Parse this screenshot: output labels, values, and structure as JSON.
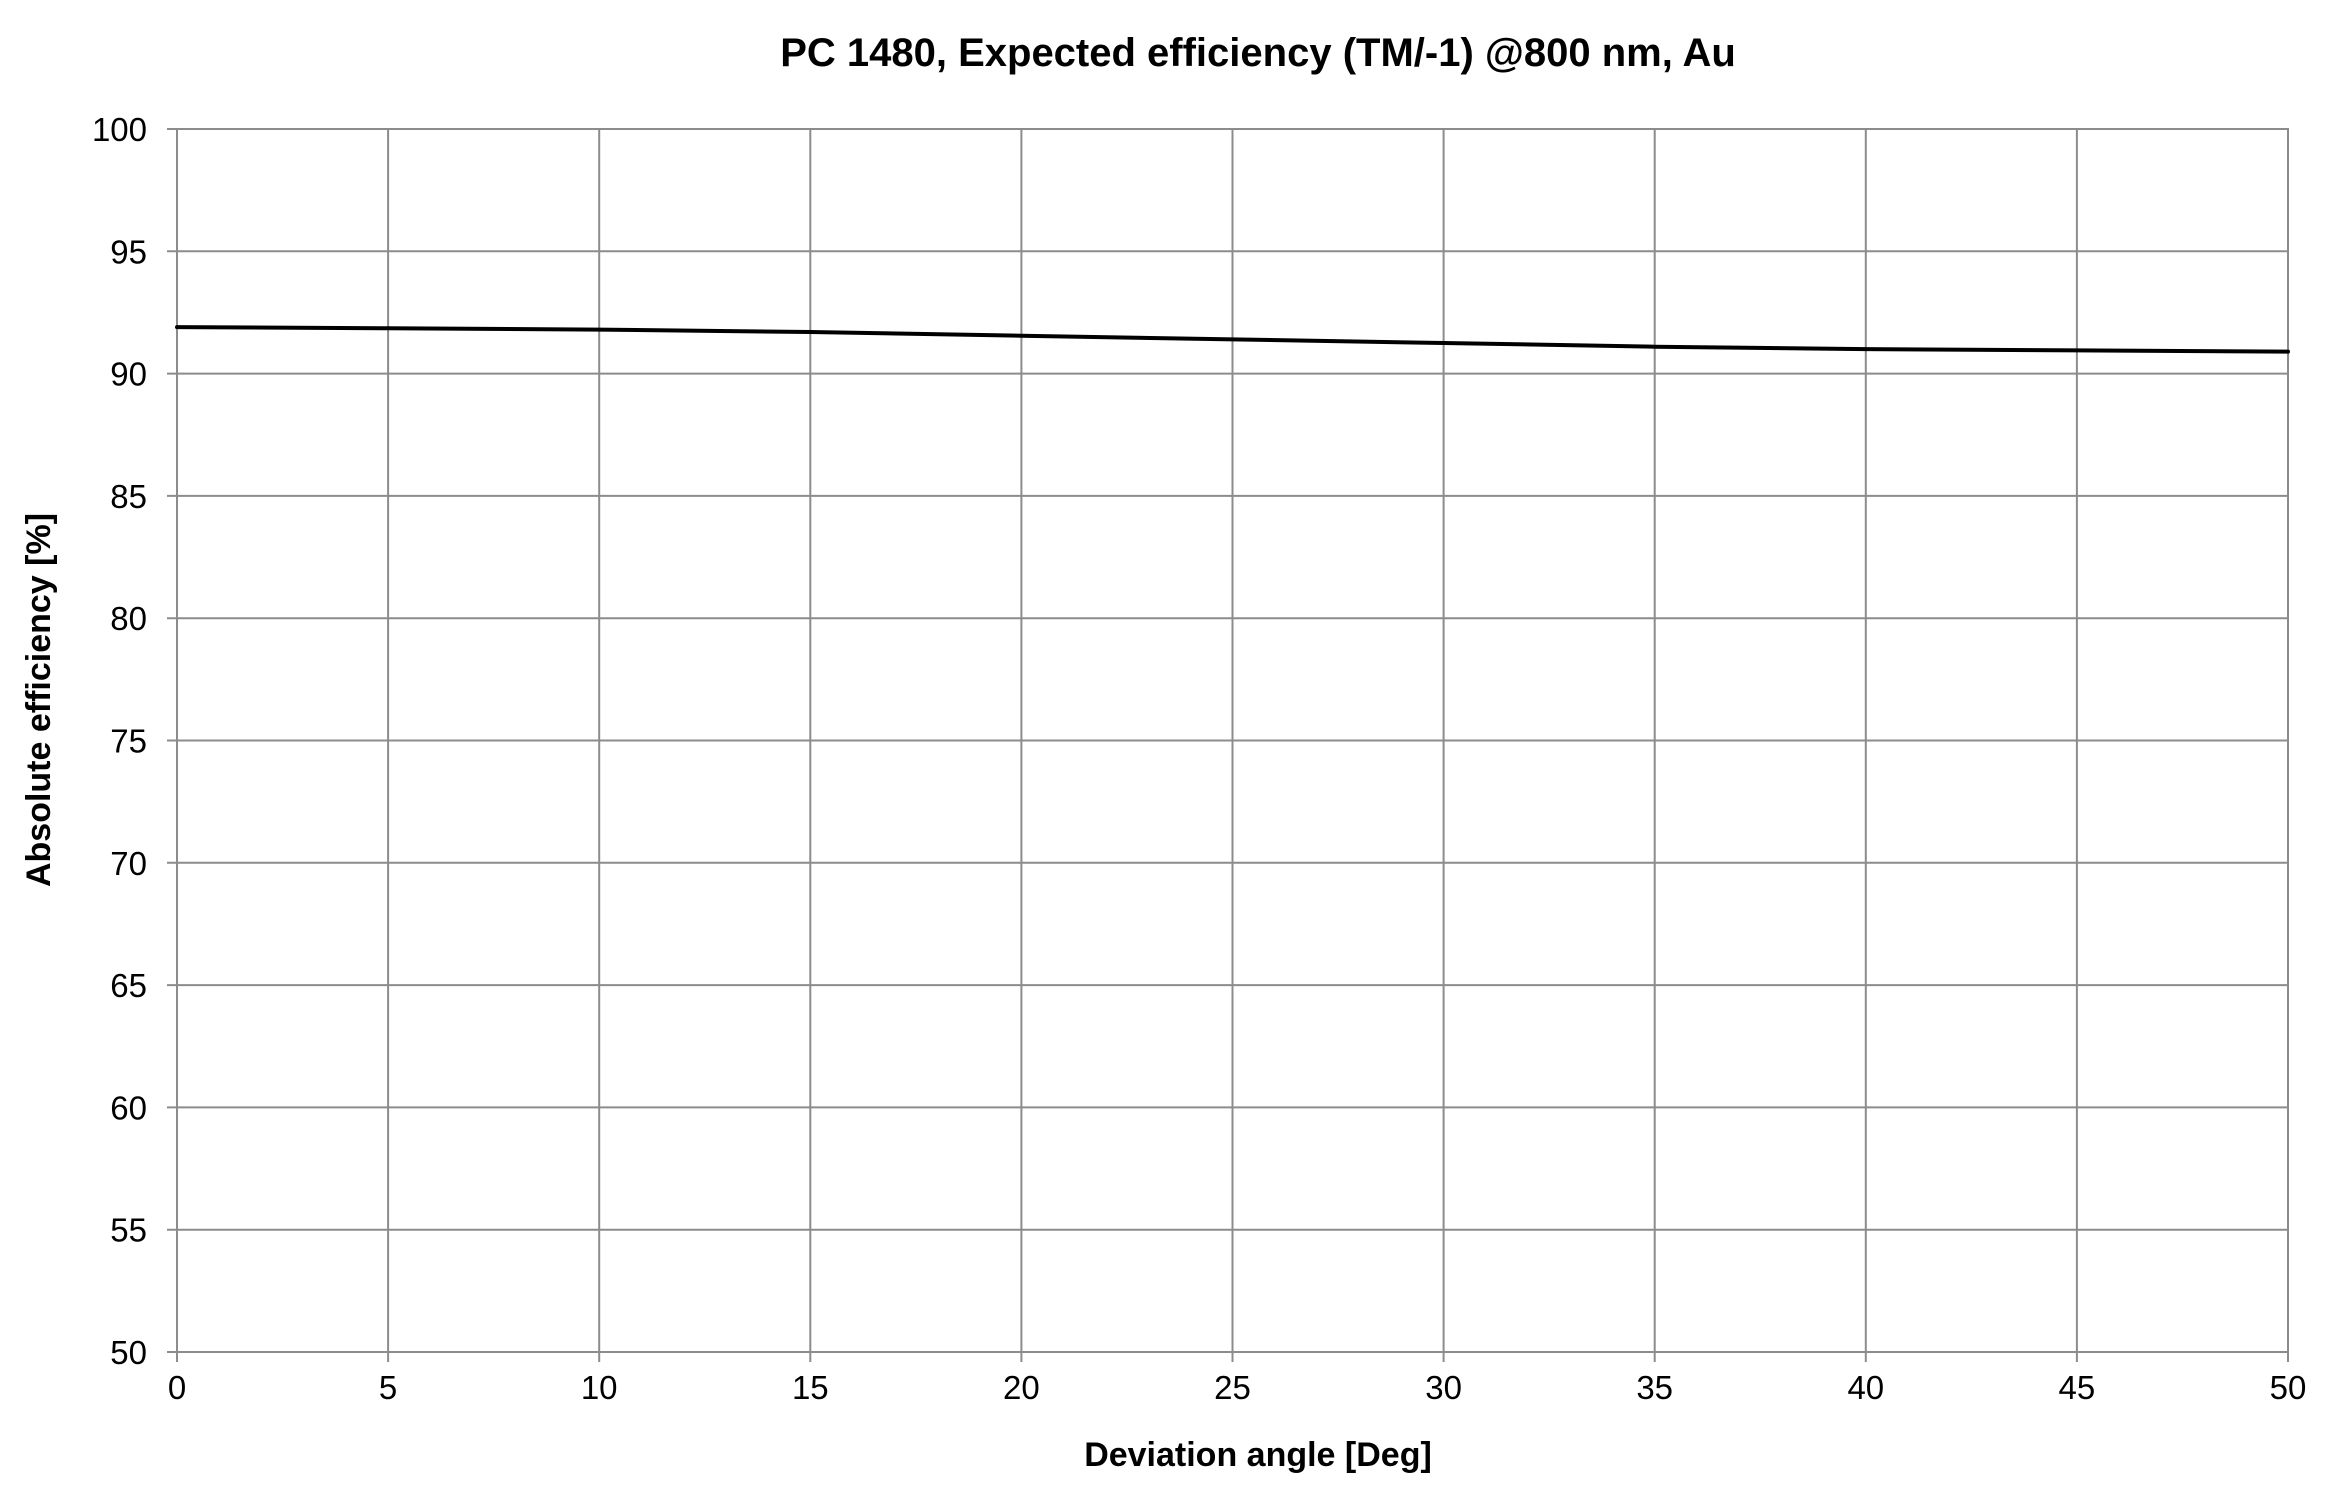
{
  "chart_data": {
    "type": "line",
    "title": "PC 1480, Expected efficiency (TM/-1) @800 nm, Au",
    "xlabel": "Deviation angle [Deg]",
    "ylabel": "Absolute efficiency [%]",
    "xlim": [
      0,
      50
    ],
    "ylim": [
      50,
      100
    ],
    "xticks": [
      "0",
      "5",
      "10",
      "15",
      "20",
      "25",
      "30",
      "35",
      "40",
      "45",
      "50"
    ],
    "yticks": [
      "50",
      "55",
      "60",
      "65",
      "70",
      "75",
      "80",
      "85",
      "90",
      "95",
      "100"
    ],
    "grid": true,
    "legend": "none",
    "series": [
      {
        "color": "#000000",
        "x": [
          0,
          5,
          10,
          15,
          20,
          25,
          30,
          35,
          40,
          45,
          50
        ],
        "y": [
          91.9,
          91.85,
          91.8,
          91.7,
          91.55,
          91.4,
          91.25,
          91.1,
          91.0,
          90.95,
          90.9
        ]
      }
    ],
    "colors": {
      "grid": "#8c8c8c",
      "axis": "#8c8c8c",
      "line": "#000000"
    }
  }
}
